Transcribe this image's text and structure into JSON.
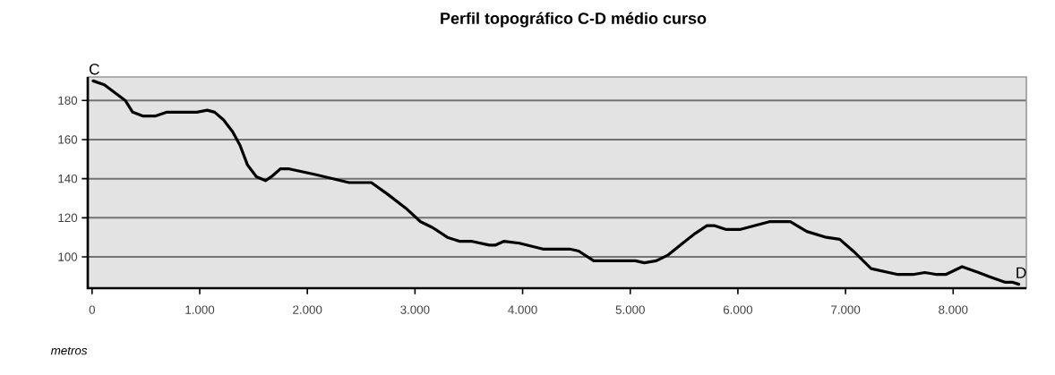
{
  "chart_data": {
    "type": "line",
    "title": "Perfil topográfico C-D médio curso",
    "xlabel": "metros",
    "color": "#000000",
    "x": [
      10,
      114,
      308,
      377,
      474,
      585,
      696,
      973,
      1070,
      1139,
      1222,
      1306,
      1375,
      1444,
      1527,
      1611,
      1666,
      1749,
      1832,
      2082,
      2387,
      2595,
      2747,
      2913,
      3052,
      3163,
      3301,
      3412,
      3523,
      3690,
      3745,
      3828,
      3970,
      4189,
      4438,
      4521,
      4660,
      5048,
      5131,
      5242,
      5353,
      5464,
      5603,
      5713,
      5780,
      5893,
      6017,
      6293,
      6487,
      6640,
      6821,
      6946,
      7071,
      7238,
      7487,
      7626,
      7737,
      7848,
      7931,
      8083,
      8236,
      8333,
      8486,
      8555,
      8610
    ],
    "values": [
      190,
      188,
      180,
      174,
      172,
      172,
      174,
      174,
      175,
      174,
      170,
      164,
      157,
      147,
      141,
      139,
      141,
      145,
      145,
      142,
      138,
      138,
      132,
      125,
      118,
      115,
      110,
      108,
      108,
      106,
      106,
      108,
      107,
      104,
      104,
      103,
      98,
      98,
      97,
      98,
      101,
      106,
      112,
      116,
      116,
      114,
      114,
      118,
      118,
      113,
      110,
      109,
      103,
      94,
      91,
      91,
      92,
      91,
      91,
      95,
      92,
      90,
      87,
      87,
      86
    ],
    "xlim": [
      -40,
      8680
    ],
    "ylim": [
      84,
      192
    ],
    "xticks": [
      0,
      {
        "value": 1000,
        "label": "1.000"
      },
      {
        "value": 2000,
        "label": "2.000"
      },
      {
        "value": 3000,
        "label": "3.000"
      },
      {
        "value": 4000,
        "label": "4.000"
      },
      {
        "value": 5000,
        "label": "5.000"
      },
      {
        "value": 6000,
        "label": "6.000"
      },
      {
        "value": 7000,
        "label": "7.000"
      },
      {
        "value": 8000,
        "label": "8.000"
      }
    ],
    "yticks": [
      100,
      120,
      140,
      160,
      180
    ],
    "grid": "y",
    "annotations": [
      {
        "text": "C",
        "x": 0,
        "y": 190
      },
      {
        "text": "D",
        "x": 8610,
        "y": 86
      }
    ]
  }
}
